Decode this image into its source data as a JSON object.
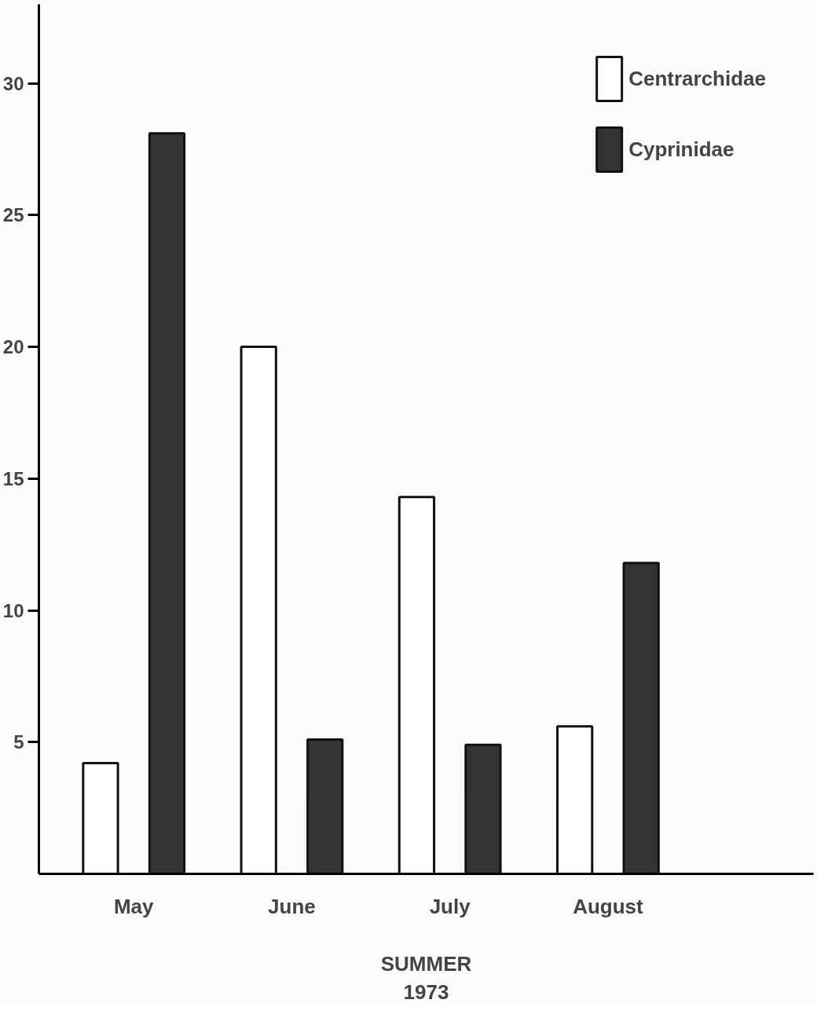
{
  "chart_data": {
    "type": "bar",
    "xlabel": "SUMMER\n1973",
    "categories": [
      "May",
      "June",
      "July",
      "August"
    ],
    "series": [
      {
        "name": "Centrarchidae",
        "color": "#ffffff",
        "values": [
          4.2,
          20.0,
          14.3,
          5.6
        ]
      },
      {
        "name": "Cyprinidae",
        "color": "#333333",
        "values": [
          28.1,
          5.1,
          4.9,
          11.8
        ]
      }
    ],
    "ylim": [
      0,
      33
    ],
    "yticks": [
      5,
      10,
      15,
      20,
      25,
      30
    ],
    "grid": false,
    "legend": "top right"
  }
}
